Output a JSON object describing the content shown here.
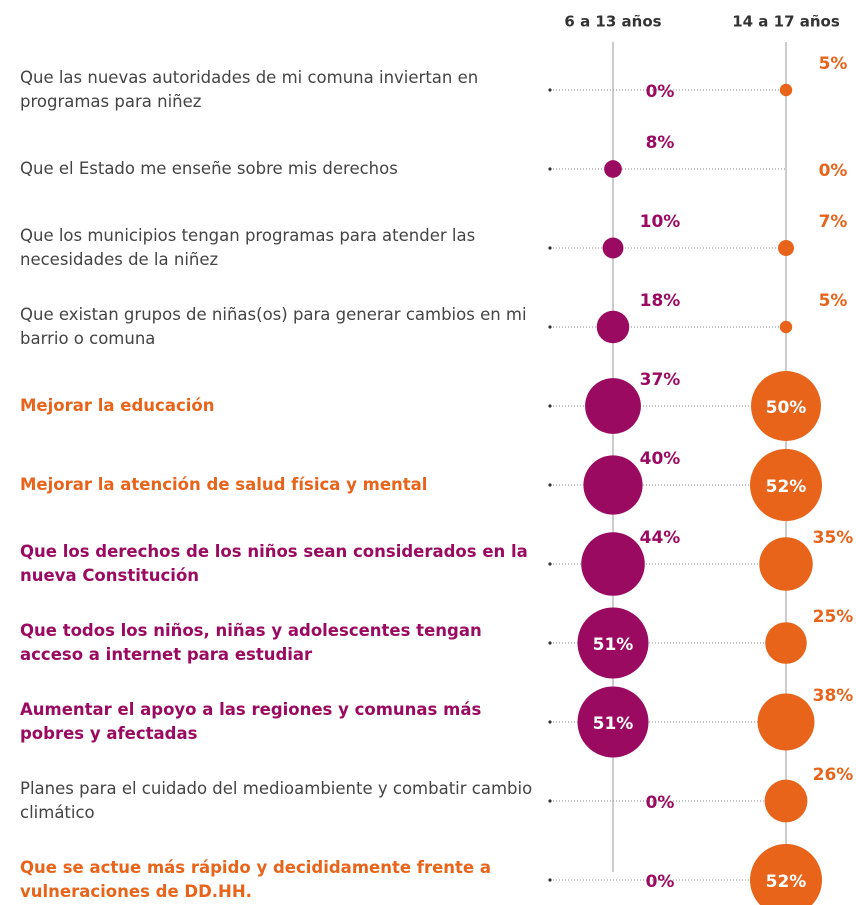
{
  "chart_data": {
    "type": "bubble",
    "categories": [
      "Que las nuevas autoridades de mi comuna inviertan en programas para niñez",
      "Que el Estado me enseñe sobre mis derechos",
      "Que los municipios tengan programas para atender las necesidades de la niñez",
      "Que existan grupos de niñas(os) para generar cambios en mi barrio o comuna",
      "Mejorar la educación",
      "Mejorar la atención de salud física y mental",
      "Que los derechos de los niños sean considerados en la nueva Constitución",
      "Que todos los niños, niñas y adolescentes tengan acceso a internet para estudiar",
      "Aumentar el apoyo a las regiones y comunas más pobres y afectadas",
      "Planes para el cuidado del medioambiente y combatir cambio climático",
      "Que se actue más rápido y decididamente frente a vulneraciones de DD.HH."
    ],
    "label_colors": [
      "#444444",
      "#444444",
      "#444444",
      "#444444",
      "#e8641b",
      "#e8641b",
      "#9b0a61",
      "#9b0a61",
      "#9b0a61",
      "#444444",
      "#e8641b"
    ],
    "series": [
      {
        "name": "6 a 13 años",
        "color": "#9b0a61",
        "values": [
          0,
          8,
          10,
          18,
          37,
          40,
          44,
          51,
          51,
          0,
          0
        ],
        "value_labels": [
          "0%",
          "8%",
          "10%",
          "18%",
          "37%",
          "40%",
          "44%",
          "51%",
          "51%",
          "0%",
          "0%"
        ]
      },
      {
        "name": "14 a 17 años",
        "color": "#e8641b",
        "values": [
          5,
          0,
          7,
          5,
          50,
          52,
          35,
          25,
          38,
          26,
          52
        ],
        "value_labels": [
          "5%",
          "0%",
          "7%",
          "5%",
          "50%",
          "52%",
          "35%",
          "25%",
          "38%",
          "26%",
          "52%"
        ]
      }
    ]
  }
}
